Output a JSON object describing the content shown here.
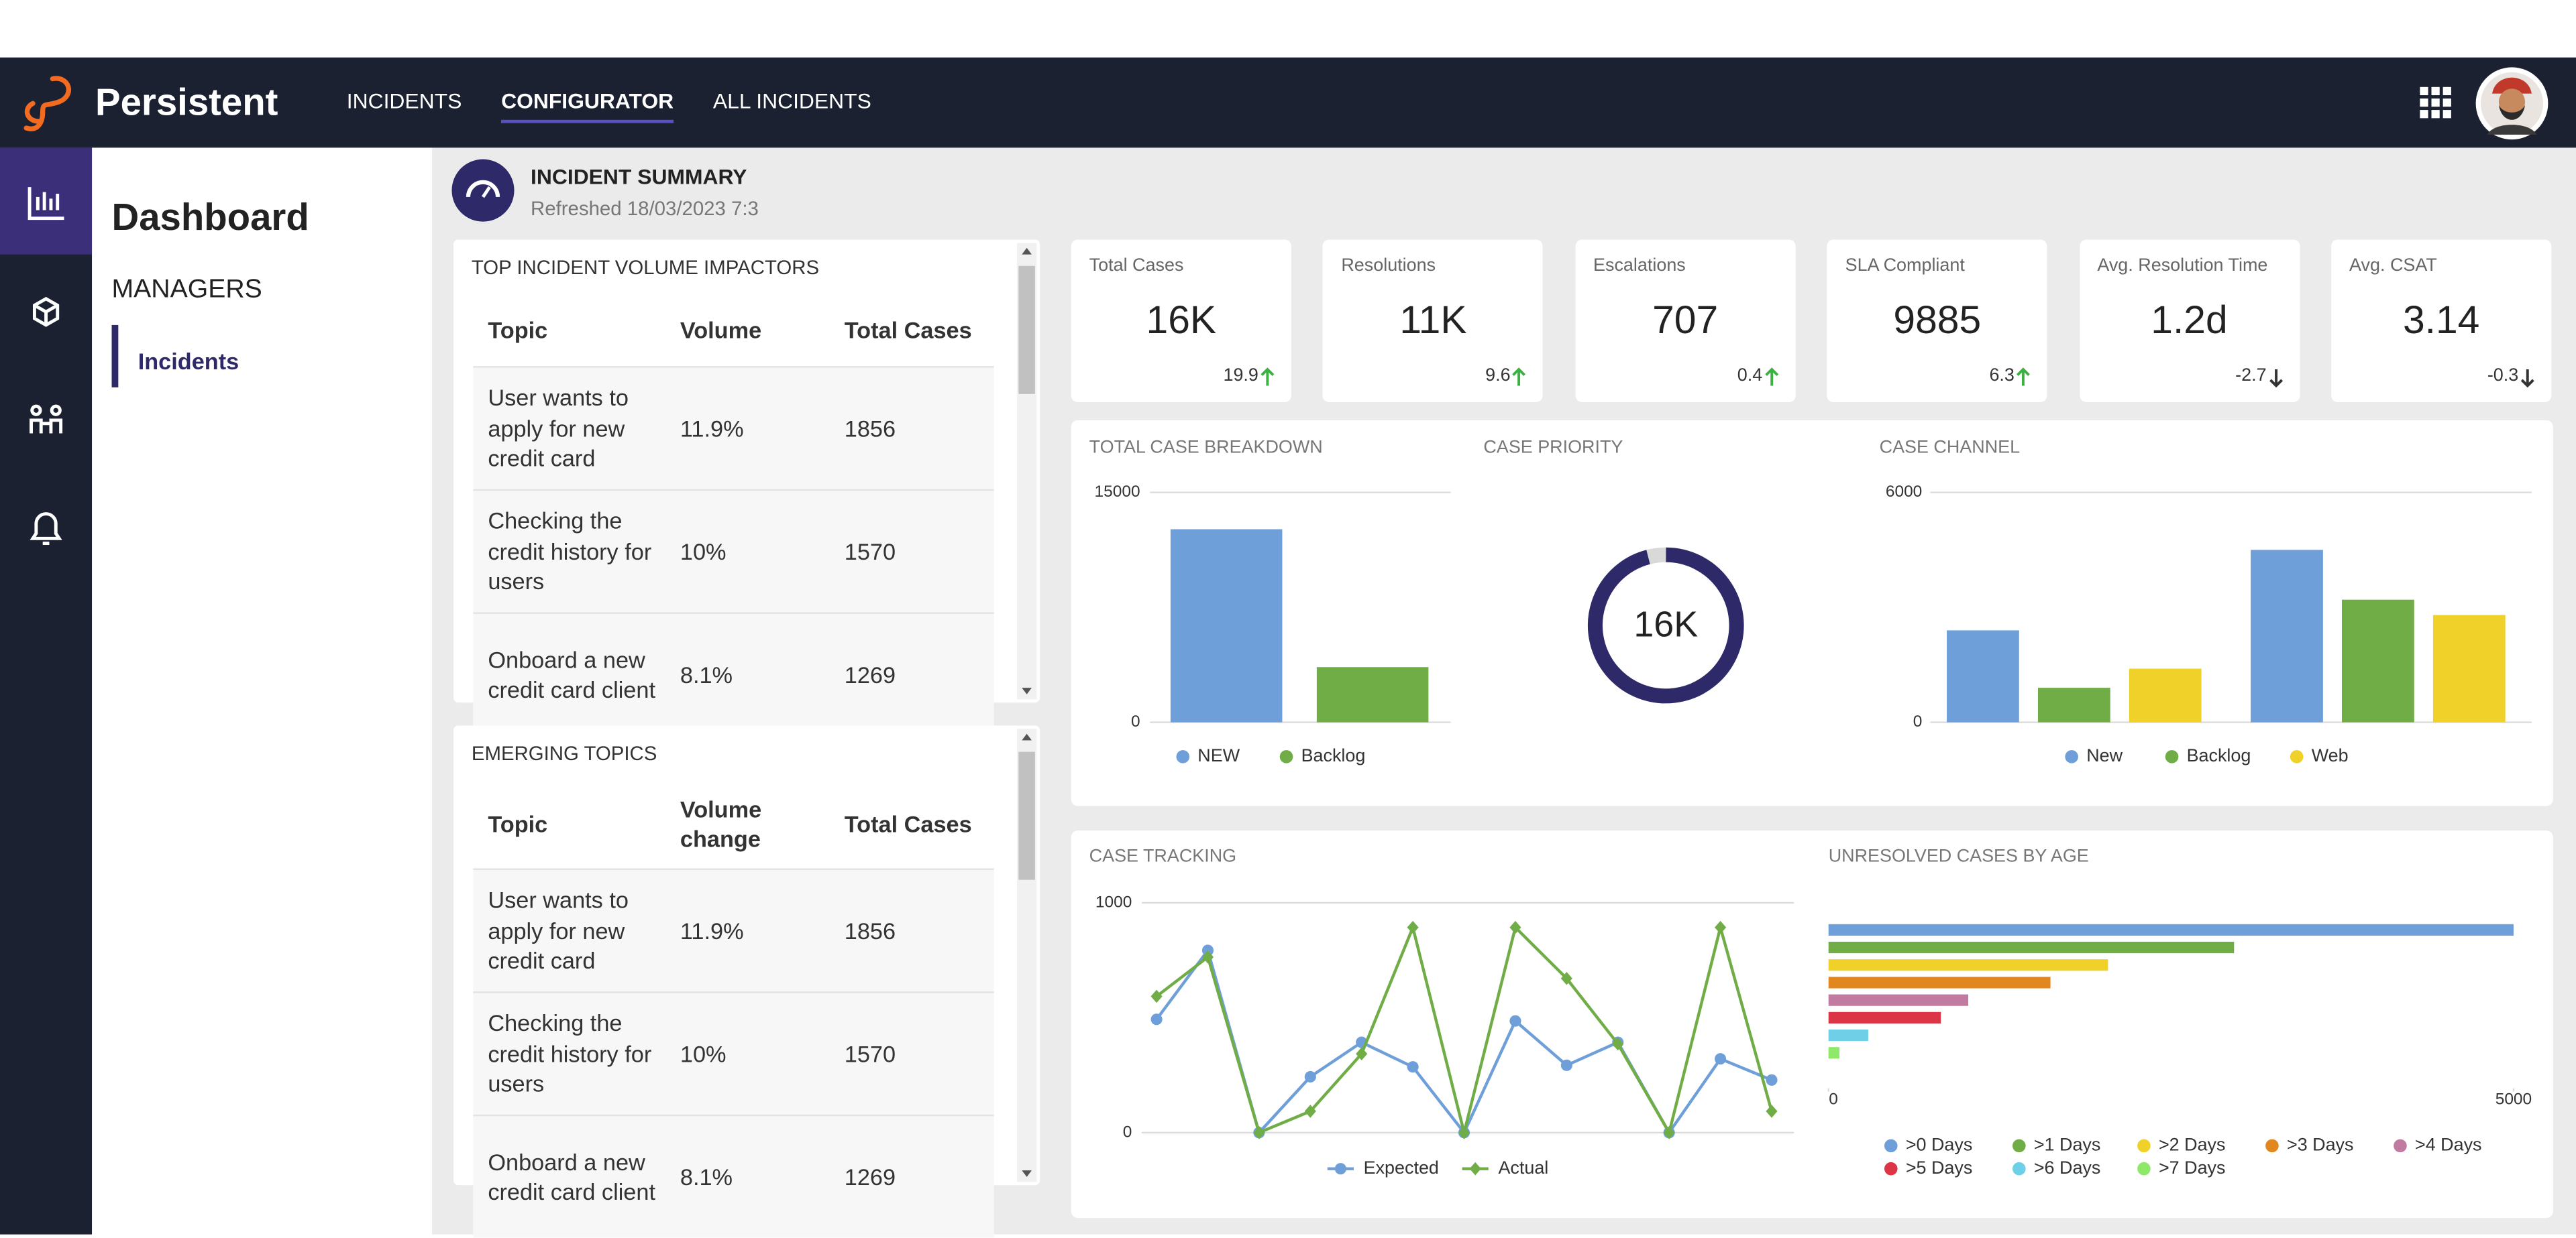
{
  "nav": {
    "brand": "Persistent",
    "items": [
      "INCIDENTS",
      "CONFIGURATOR",
      "ALL INCIDENTS"
    ],
    "active": 1
  },
  "sidebar": {
    "title": "Dashboard",
    "section": "MANAGERS",
    "items": [
      "Incidents"
    ]
  },
  "summary": {
    "title": "INCIDENT SUMMARY",
    "refreshed": "Refreshed 18/03/2023 7:3"
  },
  "kpis": [
    {
      "label": "Total Cases",
      "value": "16K",
      "delta": 19.9,
      "trend": "up"
    },
    {
      "label": "Resolutions",
      "value": "11K",
      "delta": 9.6,
      "trend": "up"
    },
    {
      "label": "Escalations",
      "value": "707",
      "delta": 0.4,
      "trend": "up"
    },
    {
      "label": "SLA Compliant",
      "value": "9885",
      "delta": 6.3,
      "trend": "up"
    },
    {
      "label": "Avg. Resolution Time",
      "value": "1.2d",
      "delta": -2.7,
      "trend": "down"
    },
    {
      "label": "Avg. CSAT",
      "value": "3.14",
      "delta": -0.3,
      "trend": "down"
    }
  ],
  "tables": [
    {
      "title": "TOP INCIDENT VOLUME IMPACTORS",
      "columns": [
        "Topic",
        "Volume",
        "Total Cases"
      ],
      "rows": [
        [
          "User wants to apply for new credit card",
          "11.9%",
          "1856"
        ],
        [
          "Checking the credit history for users",
          "10%",
          "1570"
        ],
        [
          "Onboard a new credit card client",
          "8.1%",
          "1269"
        ]
      ]
    },
    {
      "title": "EMERGING TOPICS",
      "columns": [
        "Topic",
        "Volume change",
        "Total Cases"
      ],
      "rows": [
        [
          "User wants to apply for new credit card",
          "11.9%",
          "1856"
        ],
        [
          "Checking the credit history for users",
          "10%",
          "1570"
        ],
        [
          "Onboard a new credit card client",
          "8.1%",
          "1269"
        ]
      ]
    }
  ],
  "charts": [
    {
      "type": "bar",
      "title": "TOTAL CASE BREAKDOWN",
      "categories": [
        "NEW",
        "Backlog"
      ],
      "values": [
        12600,
        3600
      ],
      "colors": [
        "#6f9fd8",
        "#70ad47"
      ],
      "ylim": [
        0,
        15000
      ],
      "yticks": [
        0,
        15000
      ]
    },
    {
      "type": "donut",
      "title": "CASE PRIORITY",
      "center_label": "16K",
      "values": [
        96,
        4
      ],
      "colors": [
        "#2e2a6a",
        "#d9d9d9"
      ]
    },
    {
      "type": "grouped_bar",
      "title": "CASE CHANNEL",
      "categories": [
        null,
        null
      ],
      "ylim": [
        0,
        6000
      ],
      "yticks": [
        0,
        6000
      ],
      "series": [
        {
          "name": "New",
          "color": "#6f9fd8",
          "values": [
            2400,
            4500
          ]
        },
        {
          "name": "Backlog",
          "color": "#70ad47",
          "values": [
            900,
            3200
          ]
        },
        {
          "name": "Web",
          "color": "#f0d12a",
          "values": [
            1400,
            2800
          ]
        }
      ]
    },
    {
      "type": "line",
      "title": "CASE TRACKING",
      "categories": [
        null,
        null,
        null,
        null,
        null,
        null,
        null,
        null,
        null,
        null,
        null,
        null,
        null
      ],
      "ylim": [
        0,
        1000
      ],
      "yticks": [
        0,
        1000
      ],
      "series": [
        {
          "name": "Expected",
          "color": "#6f9fd8",
          "marker": "circle",
          "values": [
            493,
            793,
            0,
            243,
            393,
            286,
            0,
            486,
            293,
            393,
            0,
            321,
            229
          ]
        },
        {
          "name": "Actual",
          "color": "#70ad47",
          "marker": "diamond",
          "values": [
            593,
            764,
            0,
            93,
            343,
            893,
            0,
            893,
            671,
            386,
            0,
            893,
            93
          ]
        }
      ]
    },
    {
      "type": "hbar",
      "title": "UNRESOLVED CASES BY AGE",
      "categories": [
        ">0 Days",
        ">1 Days",
        ">2 Days",
        ">3 Days",
        ">4 Days",
        ">5 Days",
        ">6 Days",
        ">7 Days"
      ],
      "values": [
        5000,
        2960,
        2040,
        1620,
        1020,
        820,
        290,
        80
      ],
      "colors": [
        "#6f9fd8",
        "#70ad47",
        "#f0d12a",
        "#e2871f",
        "#c27ba0",
        "#dc3545",
        "#6fcfe6",
        "#8ee86a"
      ],
      "xlim": [
        0,
        5000
      ],
      "xticks": [
        0,
        5000
      ]
    }
  ]
}
